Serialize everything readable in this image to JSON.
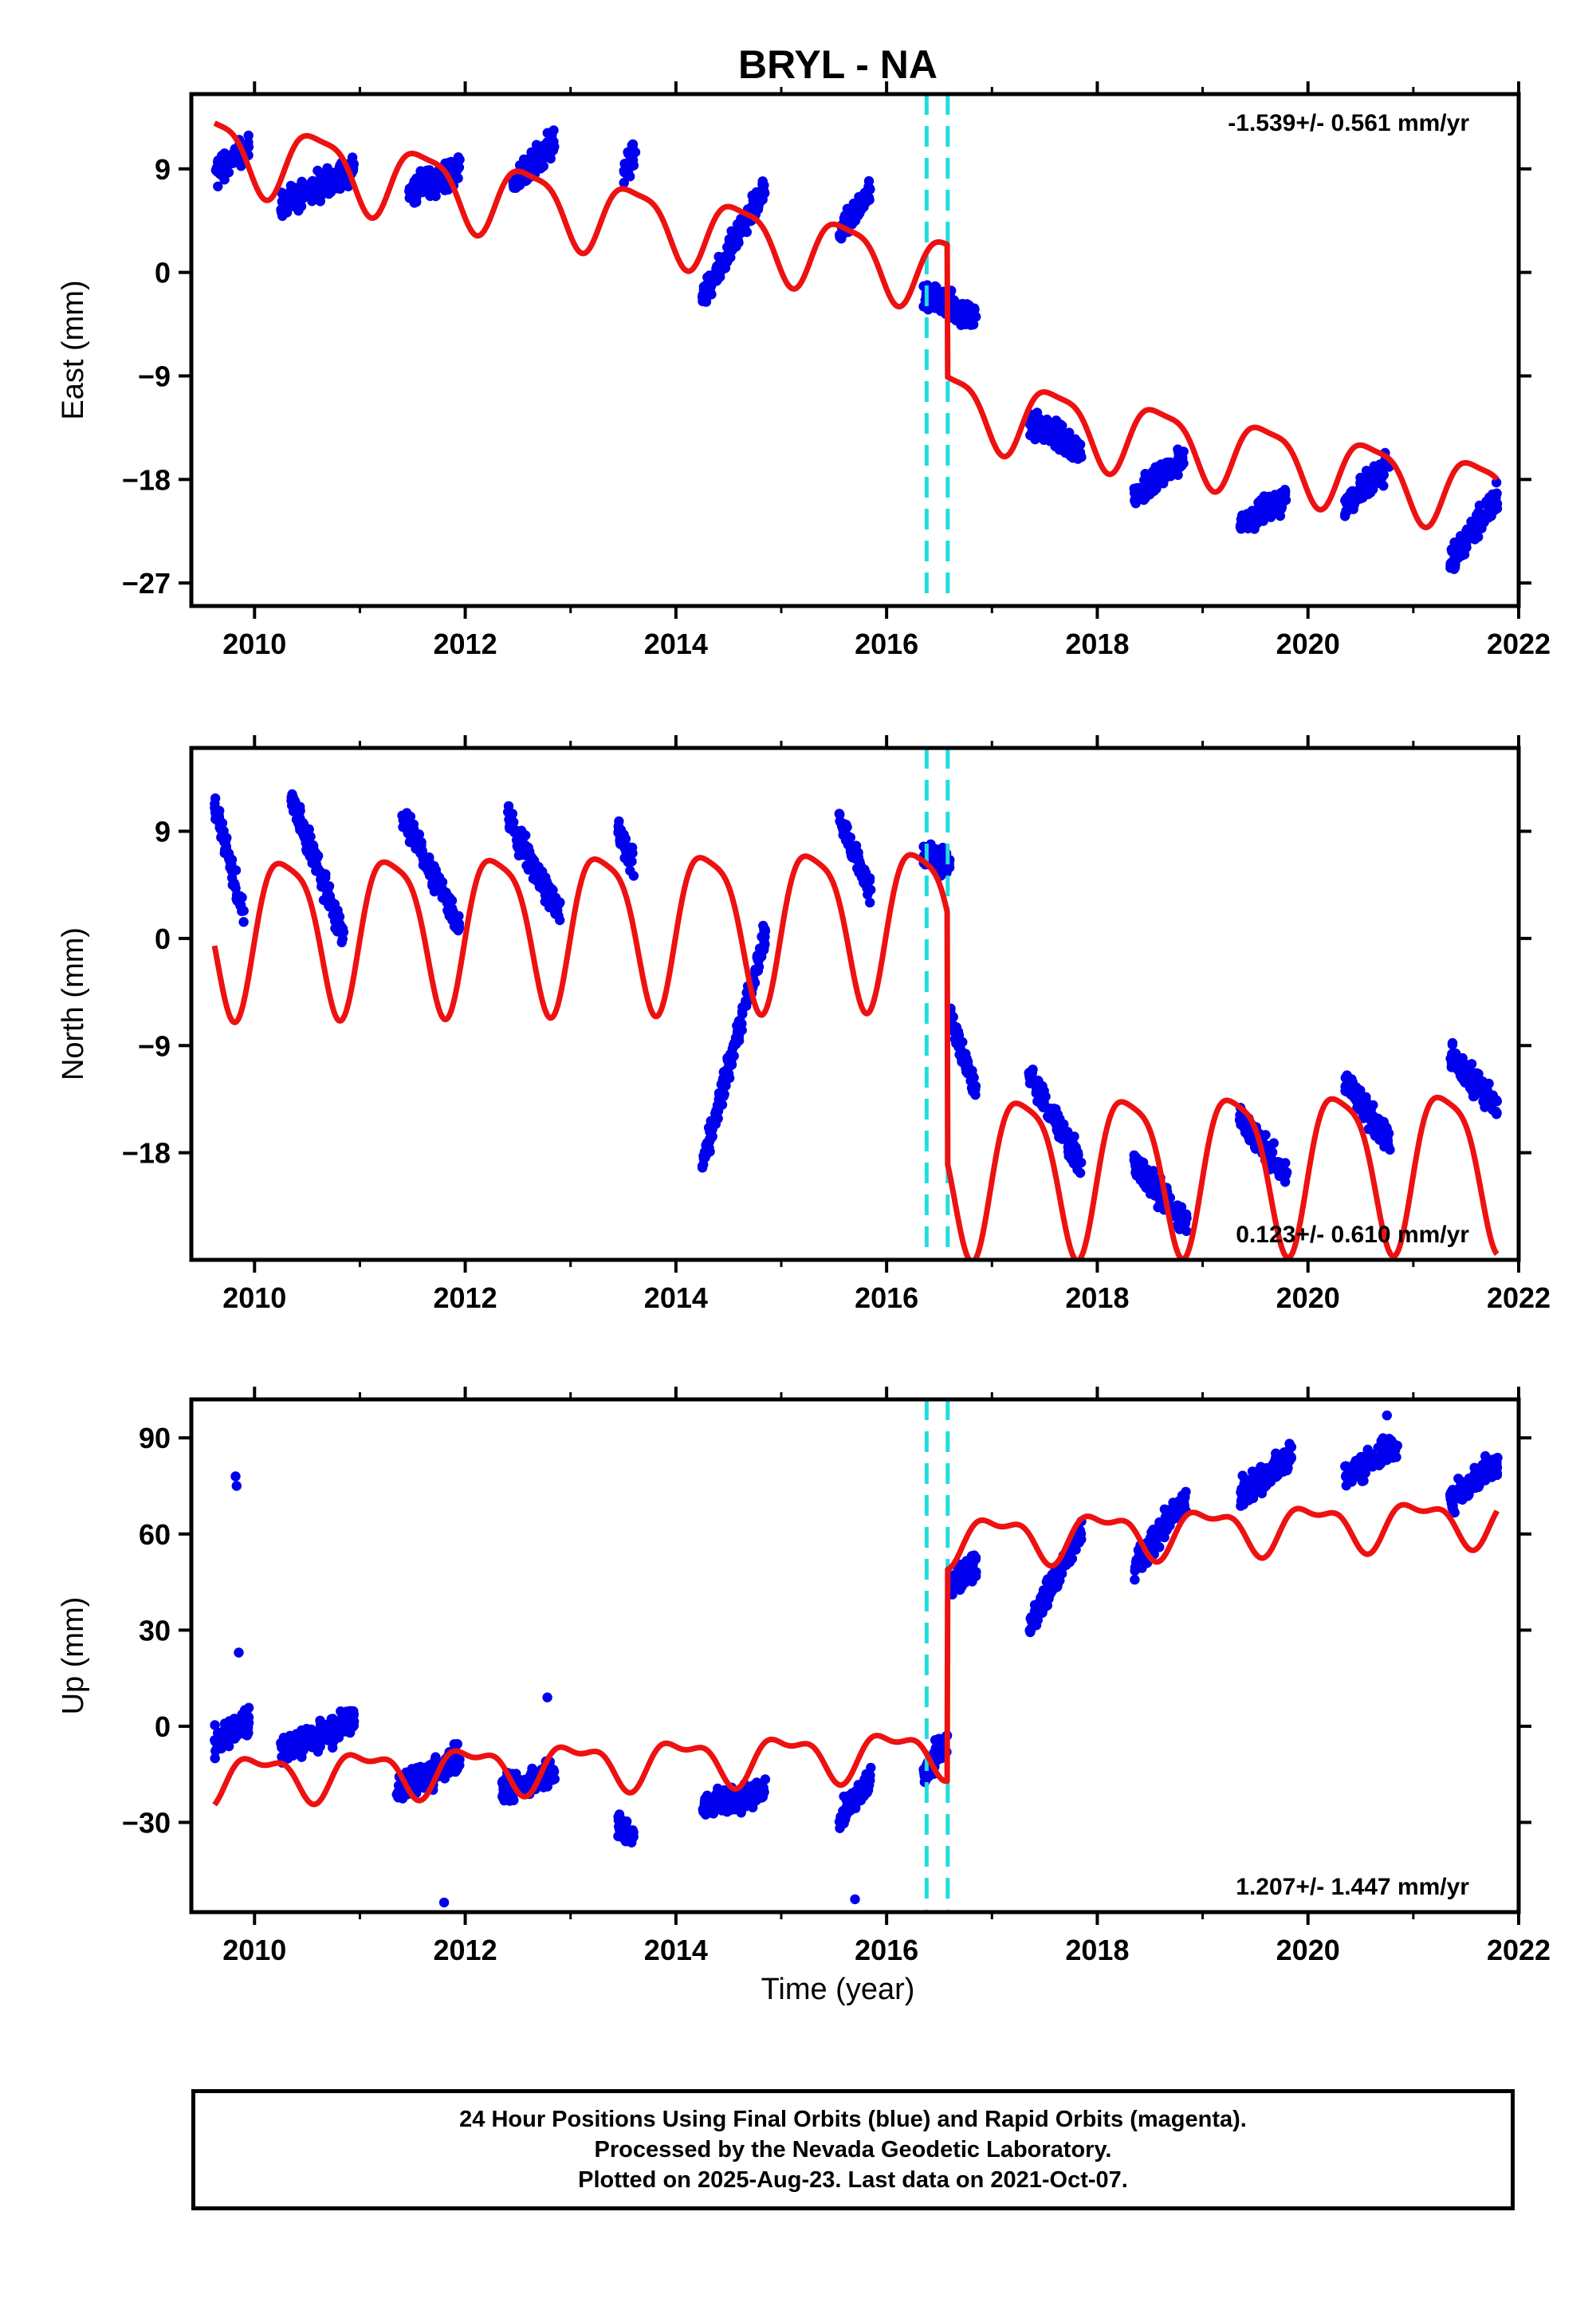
{
  "chart_data": {
    "title": "BRYL - NA",
    "xlabel": "Time (year)",
    "xlim": [
      2009.4,
      2022.0
    ],
    "xticks": [
      "2010",
      "2012",
      "2014",
      "2016",
      "2018",
      "2020",
      "2022"
    ],
    "xtick_values": [
      2010,
      2012,
      2014,
      2016,
      2018,
      2020,
      2022
    ],
    "offset_lines": [
      2016.38,
      2016.58
    ],
    "colors": {
      "data": "#0000ee",
      "model": "#ee1111",
      "offset": "#22dddd",
      "axis": "#000000"
    },
    "panels": [
      {
        "name": "east",
        "type": "scatter",
        "ylabel": "East (mm)",
        "ylim": [
          -29,
          15.5
        ],
        "yticks": [
          "9",
          "0",
          "−9",
          "−18",
          "−27"
        ],
        "ytick_values": [
          9,
          0,
          -9,
          -18,
          -27
        ],
        "rate": "-1.539+/- 0.561 mm/yr",
        "rate_position": "top-right",
        "data_segments": [
          {
            "x": [
              2009.62,
              2009.95
            ],
            "y": [
              8.5,
              11.0
            ]
          },
          {
            "x": [
              2010.25,
              2010.95
            ],
            "y": [
              6.0,
              9.0
            ]
          },
          {
            "x": [
              2011.45,
              2011.95
            ],
            "y": [
              7.0,
              9.0
            ]
          },
          {
            "x": [
              2012.45,
              2012.85
            ],
            "y": [
              7.5,
              11.5
            ]
          },
          {
            "x": [
              2013.5,
              2013.62
            ],
            "y": [
              8.5,
              10.5
            ]
          },
          {
            "x": [
              2014.25,
              2014.85
            ],
            "y": [
              -2.5,
              7.5
            ]
          },
          {
            "x": [
              2015.55,
              2015.85
            ],
            "y": [
              3.5,
              7.0
            ]
          },
          {
            "x": [
              2016.35,
              2016.85
            ],
            "y": [
              -2.0,
              -4.0
            ]
          },
          {
            "x": [
              2017.35,
              2017.85
            ],
            "y": [
              -13.0,
              -15.5
            ]
          },
          {
            "x": [
              2018.35,
              2018.82
            ],
            "y": [
              -19.5,
              -16.0
            ]
          },
          {
            "x": [
              2019.35,
              2019.8
            ],
            "y": [
              -22.0,
              -19.5
            ]
          },
          {
            "x": [
              2020.35,
              2020.78
            ],
            "y": [
              -20.5,
              -16.5
            ]
          },
          {
            "x": [
              2021.35,
              2021.8
            ],
            "y": [
              -25.0,
              -19.5
            ]
          }
        ],
        "model": {
          "a": 5.6,
          "b": -1.539,
          "t0": 2013.0,
          "amp": 3.0,
          "phase": 0.35,
          "semi_amp": 0.8,
          "steps": [
            {
              "t": 2016.58,
              "dy": -11.5
            }
          ],
          "end": 2021.8
        }
      },
      {
        "name": "north",
        "type": "scatter",
        "ylabel": "North (mm)",
        "ylim": [
          -27,
          16
        ],
        "yticks": [
          "9",
          "0",
          "−9",
          "−18"
        ],
        "ytick_values": [
          9,
          0,
          -9,
          -18
        ],
        "rate": "0.123+/- 0.610 mm/yr",
        "rate_position": "bottom-right",
        "data_segments": [
          {
            "x": [
              2009.62,
              2009.9
            ],
            "y": [
              11.0,
              2.0
            ]
          },
          {
            "x": [
              2010.35,
              2010.85
            ],
            "y": [
              12.0,
              0.0
            ]
          },
          {
            "x": [
              2011.4,
              2011.95
            ],
            "y": [
              10.5,
              1.0
            ]
          },
          {
            "x": [
              2012.4,
              2012.9
            ],
            "y": [
              10.0,
              2.0
            ]
          },
          {
            "x": [
              2013.45,
              2013.6
            ],
            "y": [
              9.0,
              6.0
            ]
          },
          {
            "x": [
              2014.25,
              2014.85
            ],
            "y": [
              -19.0,
              0.5
            ]
          },
          {
            "x": [
              2015.55,
              2015.85
            ],
            "y": [
              10.0,
              4.0
            ]
          },
          {
            "x": [
              2016.35,
              2016.6
            ],
            "y": [
              7.0,
              6.5
            ]
          },
          {
            "x": [
              2016.6,
              2016.85
            ],
            "y": [
              -6.5,
              -13.0
            ]
          },
          {
            "x": [
              2017.35,
              2017.85
            ],
            "y": [
              -11.5,
              -19.0
            ]
          },
          {
            "x": [
              2018.35,
              2018.85
            ],
            "y": [
              -19.0,
              -24.0
            ]
          },
          {
            "x": [
              2019.35,
              2019.8
            ],
            "y": [
              -15.0,
              -20.0
            ]
          },
          {
            "x": [
              2020.35,
              2020.78
            ],
            "y": [
              -12.0,
              -17.0
            ]
          },
          {
            "x": [
              2021.35,
              2021.8
            ],
            "y": [
              -10.0,
              -14.0
            ]
          }
        ],
        "model": {
          "a": 1.3,
          "b": 0.123,
          "t0": 2013.0,
          "amp": 6.5,
          "phase": 0.05,
          "semi_amp": 1.5,
          "steps": [
            {
              "t": 2016.58,
              "dy": -21.0
            }
          ],
          "end": 2021.8
        }
      },
      {
        "name": "up",
        "type": "scatter",
        "ylabel": "Up (mm)",
        "ylim": [
          -58,
          102
        ],
        "yticks": [
          "90",
          "60",
          "30",
          "0",
          "−30"
        ],
        "ytick_values": [
          90,
          60,
          30,
          0,
          -30
        ],
        "rate": "1.207+/- 1.447 mm/yr",
        "rate_position": "bottom-right",
        "data_segments": [
          {
            "x": [
              2009.62,
              2009.95
            ],
            "y": [
              -5.0,
              2.0
            ]
          },
          {
            "x": [
              2010.25,
              2010.95
            ],
            "y": [
              -8.0,
              2.0
            ]
          },
          {
            "x": [
              2011.35,
              2011.95
            ],
            "y": [
              -20.0,
              -10.0
            ]
          },
          {
            "x": [
              2012.35,
              2012.85
            ],
            "y": [
              -20.0,
              -15.0
            ]
          },
          {
            "x": [
              2013.45,
              2013.6
            ],
            "y": [
              -30.0,
              -35.0
            ]
          },
          {
            "x": [
              2014.25,
              2014.85
            ],
            "y": [
              -25.0,
              -20.0
            ]
          },
          {
            "x": [
              2015.55,
              2015.85
            ],
            "y": [
              -30.0,
              -15.0
            ]
          },
          {
            "x": [
              2016.35,
              2016.58
            ],
            "y": [
              -15.0,
              -5.0
            ]
          },
          {
            "x": [
              2016.6,
              2016.85
            ],
            "y": [
              45.0,
              50.0
            ]
          },
          {
            "x": [
              2017.35,
              2017.85
            ],
            "y": [
              30.0,
              62.0
            ]
          },
          {
            "x": [
              2018.35,
              2018.85
            ],
            "y": [
              50.0,
              72.0
            ]
          },
          {
            "x": [
              2019.35,
              2019.85
            ],
            "y": [
              72.0,
              85.0
            ]
          },
          {
            "x": [
              2020.35,
              2020.85
            ],
            "y": [
              78.0,
              88.0
            ]
          },
          {
            "x": [
              2021.35,
              2021.8
            ],
            "y": [
              70.0,
              82.0
            ]
          }
        ],
        "outliers": [
          {
            "x": 2009.82,
            "y": 78
          },
          {
            "x": 2009.83,
            "y": 75
          },
          {
            "x": 2009.85,
            "y": 23
          },
          {
            "x": 2011.8,
            "y": -55
          },
          {
            "x": 2015.7,
            "y": -54
          },
          {
            "x": 2020.75,
            "y": 97
          },
          {
            "x": 2012.78,
            "y": 9
          }
        ],
        "model": {
          "a": -12.0,
          "b": 1.207,
          "t0": 2013.0,
          "amp": 6.5,
          "phase": 0.8,
          "semi_amp": 3.0,
          "steps": [
            {
              "t": 2016.58,
              "dy": 66.0
            }
          ],
          "end": 2021.8
        }
      }
    ]
  },
  "footer": {
    "line1": "24 Hour Positions Using Final Orbits (blue) and Rapid Orbits (magenta).",
    "line2": "Processed by the Nevada Geodetic Laboratory.",
    "line3": "Plotted on 2025-Aug-23. Last data on 2021-Oct-07."
  }
}
